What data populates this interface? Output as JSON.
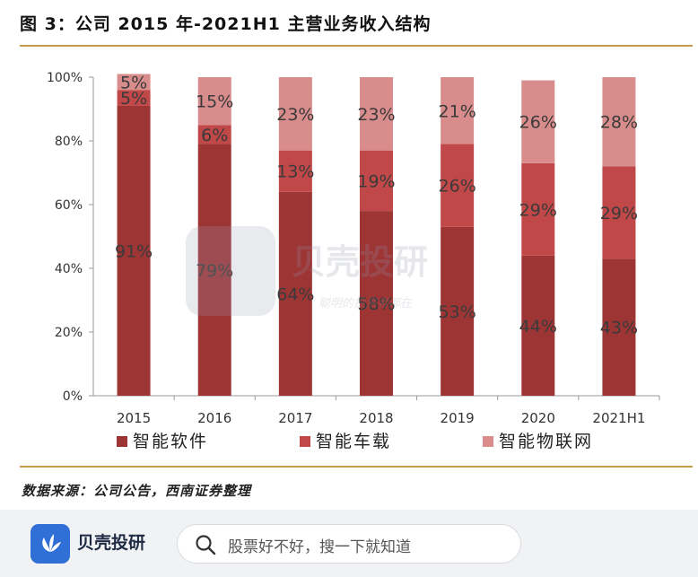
{
  "figure": {
    "title": "图 3：公司 2015 年-2021H1 主营业务收入结构",
    "source": "数据来源：公司公告，西南证券整理"
  },
  "chart_data": {
    "type": "bar",
    "stacked": true,
    "categories": [
      "2015",
      "2016",
      "2017",
      "2018",
      "2019",
      "2020",
      "2021H1"
    ],
    "series": [
      {
        "name": "智能软件",
        "values": [
          91,
          79,
          64,
          58,
          53,
          44,
          43
        ],
        "labels": [
          "91%",
          "79%",
          "64%",
          "58%",
          "53%",
          "44%",
          "43%"
        ],
        "color": "#9e3535"
      },
      {
        "name": "智能车载",
        "values": [
          5,
          6,
          13,
          19,
          26,
          29,
          29
        ],
        "labels": [
          "5%",
          "6%",
          "13%",
          "19%",
          "26%",
          "29%",
          "29%"
        ],
        "color": "#c14848"
      },
      {
        "name": "智能物联网",
        "values": [
          5,
          15,
          23,
          23,
          21,
          26,
          28
        ],
        "labels": [
          "5%",
          "15%",
          "23%",
          "23%",
          "21%",
          "26%",
          "28%"
        ],
        "color": "#d98c8c"
      }
    ],
    "yticks": [
      "0%",
      "20%",
      "40%",
      "60%",
      "80%",
      "100%"
    ],
    "ylim": [
      0,
      100
    ],
    "grid": false,
    "legend_position": "bottom"
  },
  "footer": {
    "brand_name": "贝壳投研",
    "search_placeholder": "股票好不好，搜一下就知道"
  },
  "watermark": {
    "brand": "贝壳投研",
    "slogan": "聪明的投资者都在"
  },
  "colors": {
    "rule": "#c79a4b",
    "brand_blue": "#2f6fd6"
  }
}
